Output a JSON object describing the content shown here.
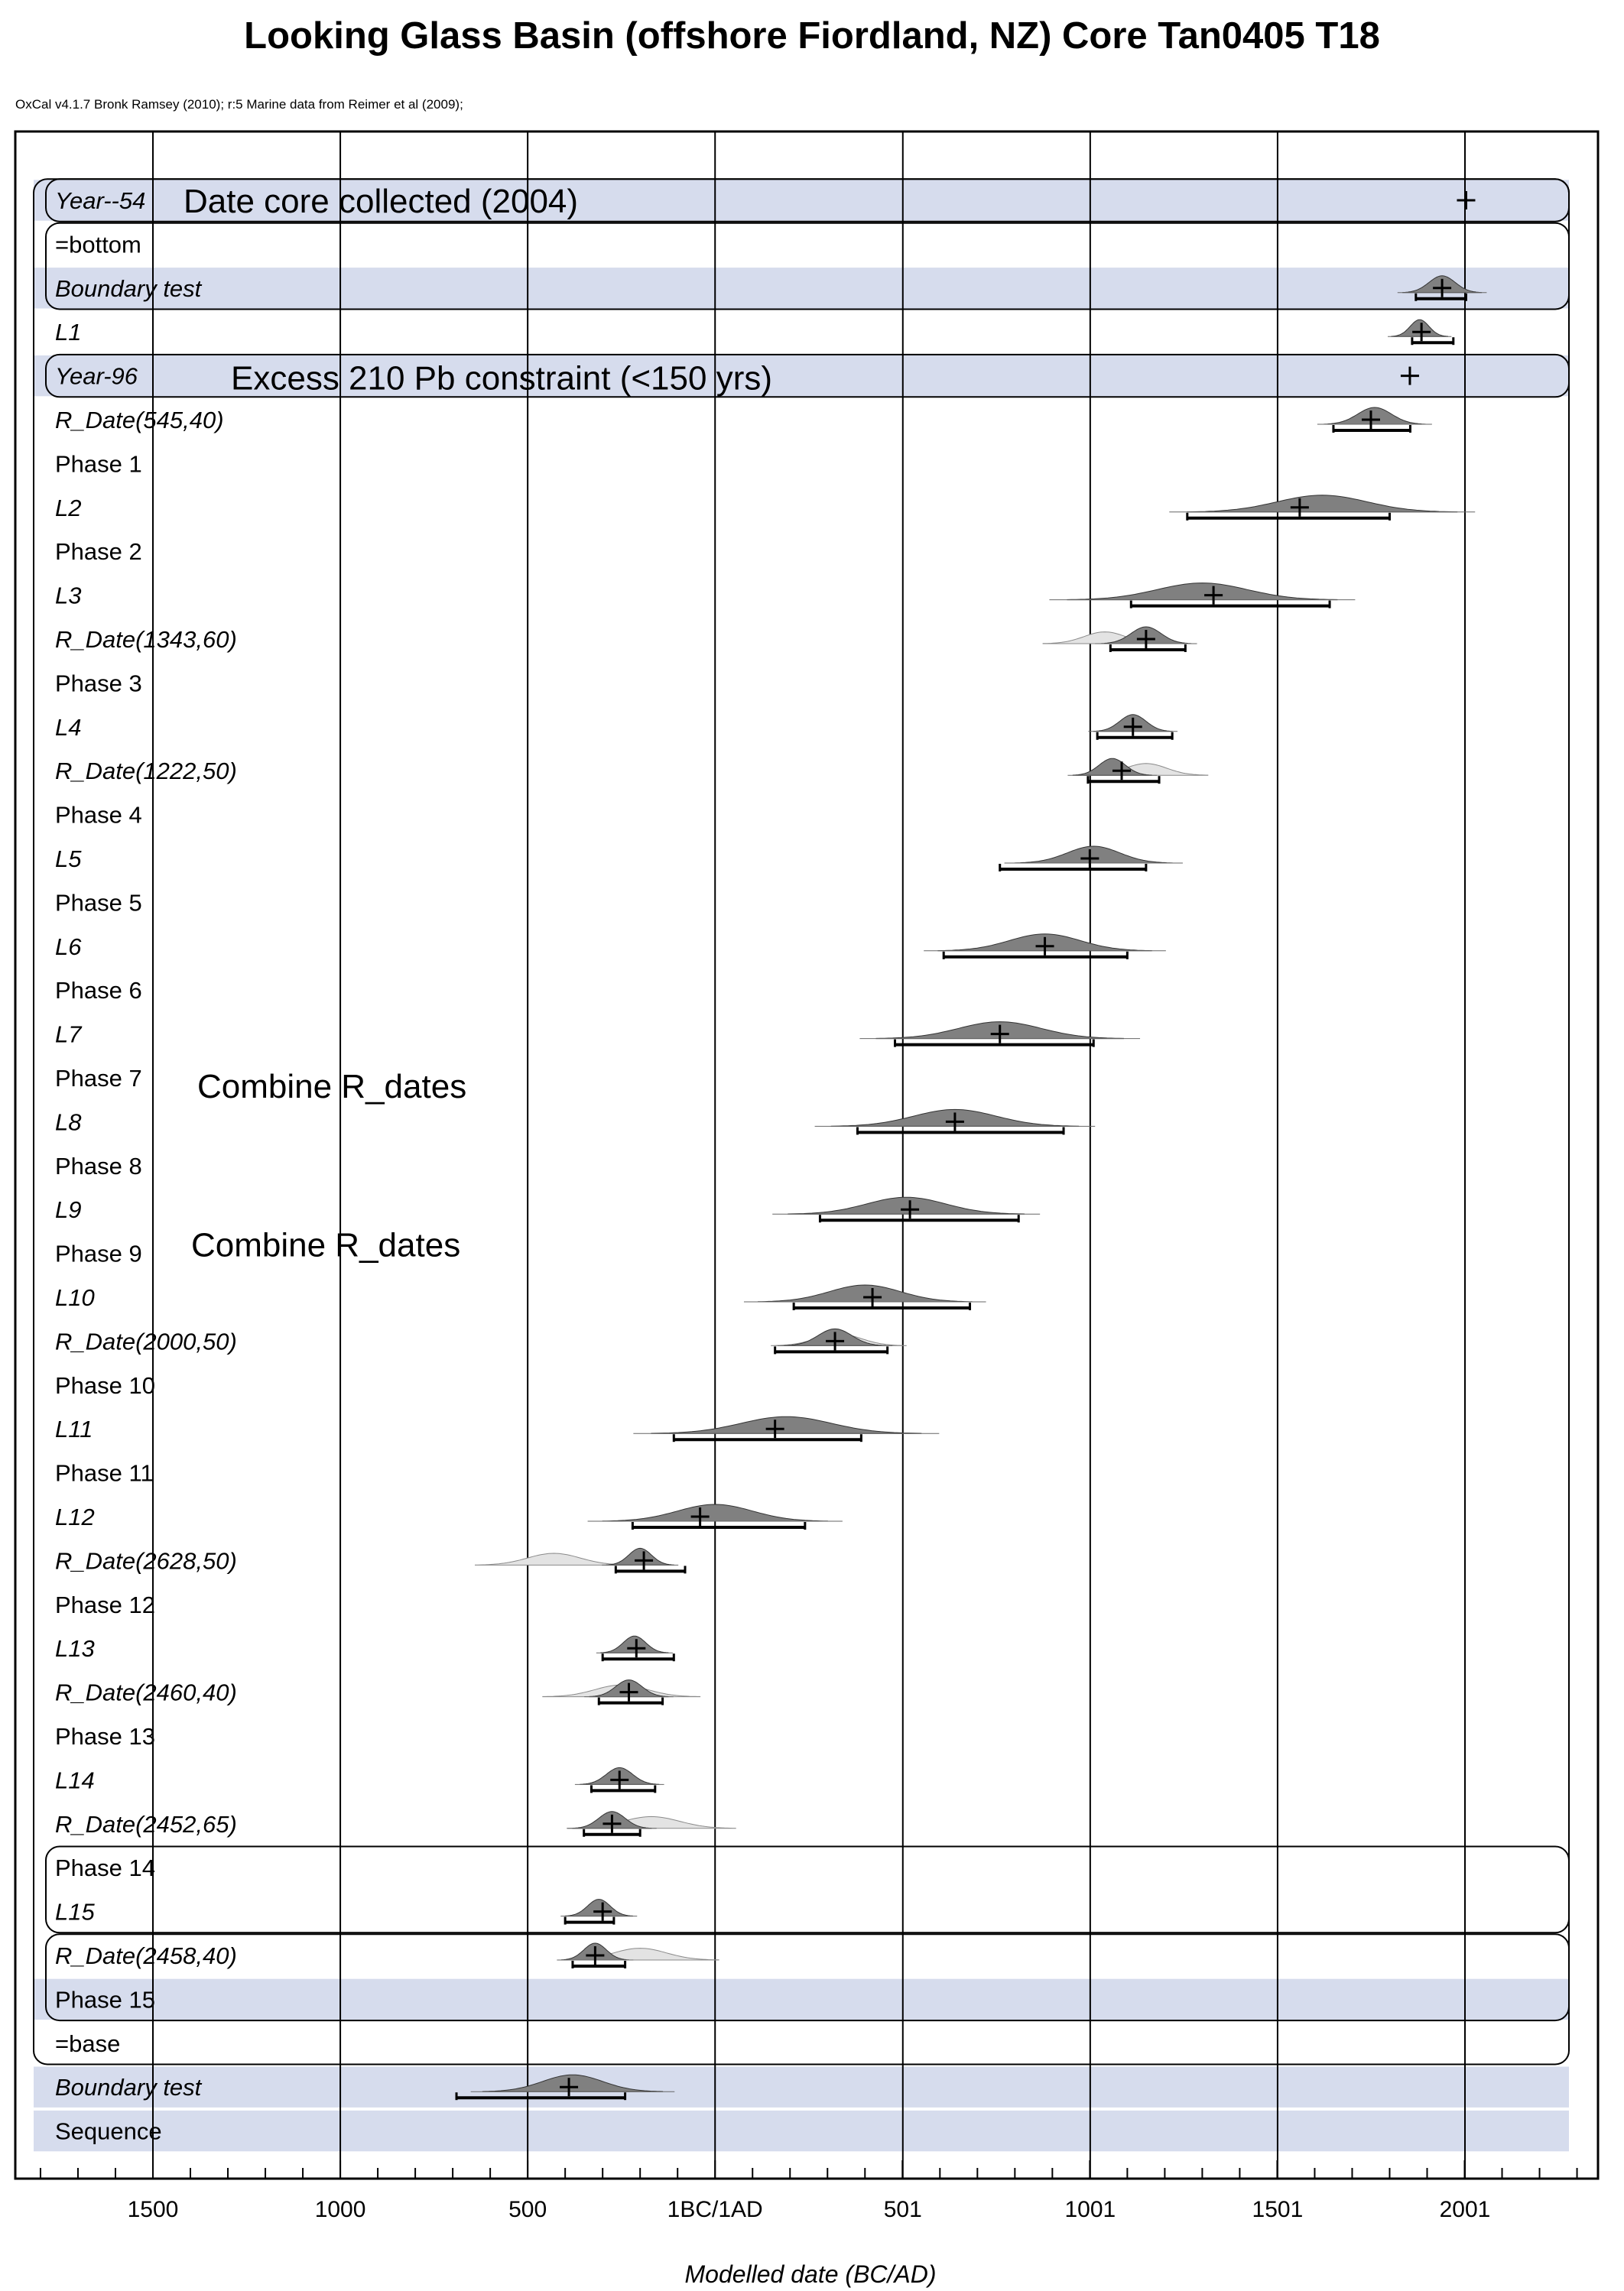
{
  "chart_data": {
    "type": "oxcal-multiplot",
    "title": "Looking Glass Basin (offshore Fiordland, NZ) Core Tan0405 T18",
    "subtitle": "OxCal v4.1.7 Bronk Ramsey (2010); r:5 Marine data from Reimer et al (2009);",
    "xlabel": "Modelled date (BC/AD)",
    "x_ticks": [
      {
        "value": -1500,
        "label": "1500"
      },
      {
        "value": -1000,
        "label": "1000"
      },
      {
        "value": -500,
        "label": "500"
      },
      {
        "value": 0,
        "label": "1BC/1AD"
      },
      {
        "value": 501,
        "label": "501"
      },
      {
        "value": 1001,
        "label": "1001"
      },
      {
        "value": 1501,
        "label": "1501"
      },
      {
        "value": 2001,
        "label": "2001"
      }
    ],
    "xlim": [
      -1870,
      2370
    ],
    "annotations": [
      {
        "text": "Date core collected (2004)",
        "row": 0
      },
      {
        "text": "Excess 210 Pb constraint (<150 yrs)",
        "row": 4
      },
      {
        "text": "Combine R_dates",
        "row": 20
      },
      {
        "text": "Combine R_dates",
        "row": 24
      }
    ],
    "rows": [
      {
        "label": "Year--54",
        "italic": true,
        "band": true,
        "point": 2004
      },
      {
        "label": "=bottom",
        "italic": false,
        "band": false
      },
      {
        "label": "Boundary test",
        "italic": true,
        "band": true,
        "post": {
          "mean": 1940,
          "sd": 35
        },
        "range": [
          1870,
          2004
        ],
        "point": 1940
      },
      {
        "label": "L1",
        "italic": true,
        "post": {
          "mean": 1880,
          "sd": 25
        },
        "range": [
          1860,
          1970
        ],
        "point": 1885
      },
      {
        "label": "Year-96",
        "italic": true,
        "band": true,
        "point": 1854
      },
      {
        "label": "R_Date(545,40)",
        "italic": true,
        "post": {
          "mean": 1760,
          "sd": 45
        },
        "range": [
          1650,
          1855
        ],
        "point": 1750
      },
      {
        "label": "Phase 1",
        "italic": false
      },
      {
        "label": "L2",
        "italic": true,
        "post": {
          "mean": 1620,
          "sd": 120
        },
        "range": [
          1260,
          1800
        ],
        "point": 1560
      },
      {
        "label": "Phase 2",
        "italic": false
      },
      {
        "label": "L3",
        "italic": true,
        "post": {
          "mean": 1300,
          "sd": 120
        },
        "range": [
          1110,
          1640
        ],
        "point": 1330
      },
      {
        "label": "R_Date(1343,60)",
        "italic": true,
        "prior": {
          "mean": 1040,
          "sd": 55
        },
        "post": {
          "mean": 1150,
          "sd": 40
        },
        "range": [
          1055,
          1255
        ],
        "point": 1150
      },
      {
        "label": "Phase 3",
        "italic": false
      },
      {
        "label": "L4",
        "italic": true,
        "post": {
          "mean": 1115,
          "sd": 35
        },
        "range": [
          1020,
          1220
        ],
        "point": 1115
      },
      {
        "label": "R_Date(1222,50)",
        "italic": true,
        "prior": {
          "mean": 1150,
          "sd": 55
        },
        "post": {
          "mean": 1060,
          "sd": 35
        },
        "range": [
          995,
          1185
        ],
        "point": 1085
      },
      {
        "label": "Phase 4",
        "italic": false
      },
      {
        "label": "L5",
        "italic": true,
        "post": {
          "mean": 1010,
          "sd": 70
        },
        "range": [
          760,
          1150
        ],
        "point": 1000
      },
      {
        "label": "Phase 5",
        "italic": false
      },
      {
        "label": "L6",
        "italic": true,
        "post": {
          "mean": 880,
          "sd": 95
        },
        "range": [
          610,
          1100
        ],
        "point": 880
      },
      {
        "label": "Phase 6",
        "italic": false
      },
      {
        "label": "L7",
        "italic": true,
        "post": {
          "mean": 760,
          "sd": 110
        },
        "range": [
          480,
          1010
        ],
        "point": 760
      },
      {
        "label": "Phase 7",
        "italic": false
      },
      {
        "label": "L8",
        "italic": true,
        "post": {
          "mean": 640,
          "sd": 110
        },
        "range": [
          380,
          930
        ],
        "point": 640
      },
      {
        "label": "Phase 8",
        "italic": false
      },
      {
        "label": "L9",
        "italic": true,
        "post": {
          "mean": 510,
          "sd": 105
        },
        "range": [
          280,
          810
        ],
        "point": 520
      },
      {
        "label": "Phase 9",
        "italic": false
      },
      {
        "label": "L10",
        "italic": true,
        "post": {
          "mean": 400,
          "sd": 95
        },
        "range": [
          210,
          680
        ],
        "point": 420
      },
      {
        "label": "R_Date(2000,50)",
        "italic": true,
        "prior": {
          "mean": 330,
          "sd": 60
        },
        "post": {
          "mean": 320,
          "sd": 45
        },
        "range": [
          160,
          460
        ],
        "point": 320
      },
      {
        "label": "Phase 10",
        "italic": false
      },
      {
        "label": "L11",
        "italic": true,
        "post": {
          "mean": 190,
          "sd": 120
        },
        "range": [
          -110,
          390
        ],
        "point": 160
      },
      {
        "label": "Phase 11",
        "italic": false
      },
      {
        "label": "L12",
        "italic": true,
        "post": {
          "mean": 0,
          "sd": 100
        },
        "range": [
          -220,
          240
        ],
        "point": -40
      },
      {
        "label": "R_Date(2628,50)",
        "italic": true,
        "prior": {
          "mean": -430,
          "sd": 70
        },
        "post": {
          "mean": -200,
          "sd": 30
        },
        "range": [
          -265,
          -80
        ],
        "point": -190
      },
      {
        "label": "Phase 12",
        "italic": false
      },
      {
        "label": "L13",
        "italic": true,
        "post": {
          "mean": -215,
          "sd": 30
        },
        "range": [
          -300,
          -110
        ],
        "point": -210
      },
      {
        "label": "R_Date(2460,40)",
        "italic": true,
        "prior": {
          "mean": -250,
          "sd": 70
        },
        "post": {
          "mean": -230,
          "sd": 35
        },
        "range": [
          -310,
          -140
        ],
        "point": -230
      },
      {
        "label": "Phase 13",
        "italic": false
      },
      {
        "label": "L14",
        "italic": true,
        "post": {
          "mean": -255,
          "sd": 35
        },
        "range": [
          -330,
          -160
        ],
        "point": -255
      },
      {
        "label": "R_Date(2452,65)",
        "italic": true,
        "prior": {
          "mean": -170,
          "sd": 75
        },
        "post": {
          "mean": -275,
          "sd": 35
        },
        "range": [
          -350,
          -200
        ],
        "point": -275
      },
      {
        "label": "Phase 14",
        "italic": false
      },
      {
        "label": "L15",
        "italic": true,
        "post": {
          "mean": -310,
          "sd": 30
        },
        "range": [
          -400,
          -270
        ],
        "point": -300
      },
      {
        "label": "R_Date(2458,40)",
        "italic": true,
        "band": false,
        "prior": {
          "mean": -200,
          "sd": 70
        },
        "post": {
          "mean": -320,
          "sd": 30
        },
        "range": [
          -380,
          -240
        ],
        "point": -320
      },
      {
        "label": "Phase 15",
        "italic": false,
        "band": true
      },
      {
        "label": "=base",
        "italic": false,
        "band": false
      },
      {
        "label": "Boundary test",
        "italic": true,
        "band": true,
        "post": {
          "mean": -380,
          "sd": 80
        },
        "range": [
          -690,
          -240
        ],
        "point": -390
      },
      {
        "label": "Sequence",
        "italic": false,
        "band": true
      }
    ]
  }
}
